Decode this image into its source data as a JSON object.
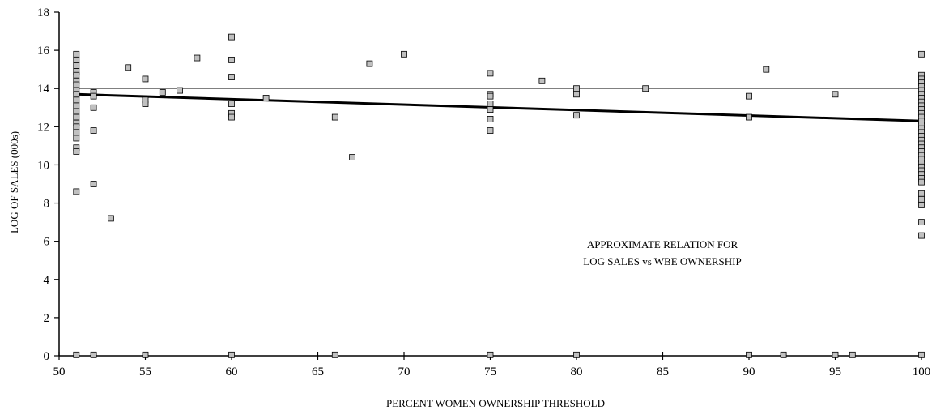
{
  "chart_data": {
    "type": "scatter",
    "xlabel": "PERCENT WOMEN OWNERSHIP THRESHOLD",
    "ylabel": "LOG OF SALES (000s)",
    "xlim": [
      50,
      100
    ],
    "ylim": [
      0,
      18
    ],
    "xticks": [
      50,
      55,
      60,
      65,
      70,
      75,
      80,
      85,
      90,
      95,
      100
    ],
    "yticks": [
      0,
      2,
      4,
      6,
      8,
      10,
      12,
      14,
      16,
      18
    ],
    "grid": false,
    "annotation": [
      "APPROXIMATE RELATION FOR",
      "LOG SALES vs WBE OWNERSHIP"
    ],
    "reference_line": {
      "y": 14
    },
    "trend_line": {
      "x": [
        51,
        100
      ],
      "y": [
        13.7,
        12.3
      ]
    },
    "marker_color": "#c0c0c0",
    "points": [
      [
        51,
        15.8
      ],
      [
        51,
        15.5
      ],
      [
        51,
        15.2
      ],
      [
        51,
        14.9
      ],
      [
        51,
        14.7
      ],
      [
        51,
        14.4
      ],
      [
        51,
        14.2
      ],
      [
        51,
        13.9
      ],
      [
        51,
        13.7
      ],
      [
        51,
        13.4
      ],
      [
        51,
        13.1
      ],
      [
        51,
        12.8
      ],
      [
        51,
        12.5
      ],
      [
        51,
        12.2
      ],
      [
        51,
        12.0
      ],
      [
        51,
        11.7
      ],
      [
        51,
        11.4
      ],
      [
        51,
        10.9
      ],
      [
        51,
        10.7
      ],
      [
        51,
        8.6
      ],
      [
        51,
        0.05
      ],
      [
        52,
        13.8
      ],
      [
        52,
        13.6
      ],
      [
        52,
        13.0
      ],
      [
        52,
        11.8
      ],
      [
        52,
        9.0
      ],
      [
        52,
        0.05
      ],
      [
        53,
        7.2
      ],
      [
        54,
        15.1
      ],
      [
        55,
        14.5
      ],
      [
        55,
        13.4
      ],
      [
        55,
        13.2
      ],
      [
        55,
        0.05
      ],
      [
        56,
        13.8
      ],
      [
        57,
        13.9
      ],
      [
        58,
        15.6
      ],
      [
        60,
        16.7
      ],
      [
        60,
        15.5
      ],
      [
        60,
        14.6
      ],
      [
        60,
        13.2
      ],
      [
        60,
        12.7
      ],
      [
        60,
        12.5
      ],
      [
        60,
        0.05
      ],
      [
        62,
        13.5
      ],
      [
        66,
        12.5
      ],
      [
        66,
        0.05
      ],
      [
        67,
        10.4
      ],
      [
        68,
        15.3
      ],
      [
        70,
        15.8
      ],
      [
        75,
        14.8
      ],
      [
        75,
        13.7
      ],
      [
        75,
        13.6
      ],
      [
        75,
        13.2
      ],
      [
        75,
        12.9
      ],
      [
        75,
        12.4
      ],
      [
        75,
        11.8
      ],
      [
        75,
        0.05
      ],
      [
        78,
        14.4
      ],
      [
        80,
        14.0
      ],
      [
        80,
        13.7
      ],
      [
        80,
        12.6
      ],
      [
        80,
        0.05
      ],
      [
        84,
        14.0
      ],
      [
        90,
        13.6
      ],
      [
        90,
        12.5
      ],
      [
        90,
        0.05
      ],
      [
        91,
        15.0
      ],
      [
        92,
        0.05
      ],
      [
        95,
        13.7
      ],
      [
        95,
        0.05
      ],
      [
        96,
        0.05
      ],
      [
        100,
        15.8
      ],
      [
        100,
        14.7
      ],
      [
        100,
        14.5
      ],
      [
        100,
        14.3
      ],
      [
        100,
        14.1
      ],
      [
        100,
        13.9
      ],
      [
        100,
        13.7
      ],
      [
        100,
        13.5
      ],
      [
        100,
        13.3
      ],
      [
        100,
        13.1
      ],
      [
        100,
        12.9
      ],
      [
        100,
        12.7
      ],
      [
        100,
        12.5
      ],
      [
        100,
        12.3
      ],
      [
        100,
        12.1
      ],
      [
        100,
        11.9
      ],
      [
        100,
        11.7
      ],
      [
        100,
        11.5
      ],
      [
        100,
        11.3
      ],
      [
        100,
        11.1
      ],
      [
        100,
        10.9
      ],
      [
        100,
        10.7
      ],
      [
        100,
        10.5
      ],
      [
        100,
        10.3
      ],
      [
        100,
        10.1
      ],
      [
        100,
        9.9
      ],
      [
        100,
        9.7
      ],
      [
        100,
        9.5
      ],
      [
        100,
        9.3
      ],
      [
        100,
        9.1
      ],
      [
        100,
        8.5
      ],
      [
        100,
        8.2
      ],
      [
        100,
        7.9
      ],
      [
        100,
        7.0
      ],
      [
        100,
        6.3
      ],
      [
        100,
        0.05
      ]
    ]
  }
}
